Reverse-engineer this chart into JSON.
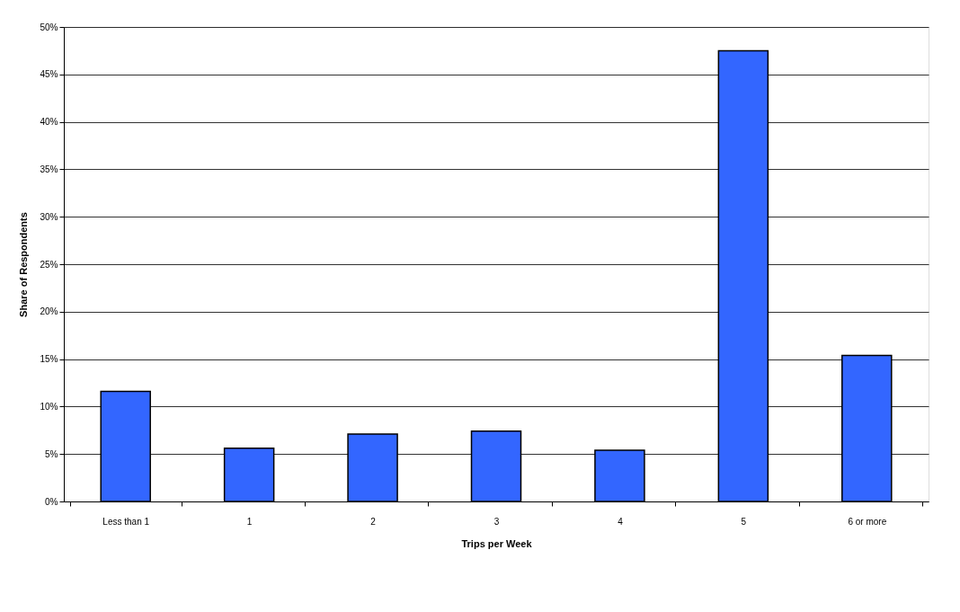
{
  "chart_data": {
    "type": "bar",
    "xlabel": "Trips per Week",
    "ylabel": "Share of Respondents",
    "categories": [
      "Less than 1",
      "1",
      "2",
      "3",
      "4",
      "5",
      "6 or more"
    ],
    "values": [
      11.6,
      5.6,
      7.1,
      7.4,
      5.4,
      47.5,
      15.4
    ],
    "color": "#3366ff",
    "ylim": [
      0,
      50
    ],
    "yticks": [
      {
        "value": 0,
        "label": "0%"
      },
      {
        "value": 5,
        "label": "5%"
      },
      {
        "value": 10,
        "label": "10%"
      },
      {
        "value": 15,
        "label": "15%"
      },
      {
        "value": 20,
        "label": "20%"
      },
      {
        "value": 25,
        "label": "25%"
      },
      {
        "value": 30,
        "label": "30%"
      },
      {
        "value": 35,
        "label": "35%"
      },
      {
        "value": 40,
        "label": "40%"
      },
      {
        "value": 45,
        "label": "45%"
      },
      {
        "value": 50,
        "label": "50%"
      }
    ],
    "grid": "y"
  }
}
